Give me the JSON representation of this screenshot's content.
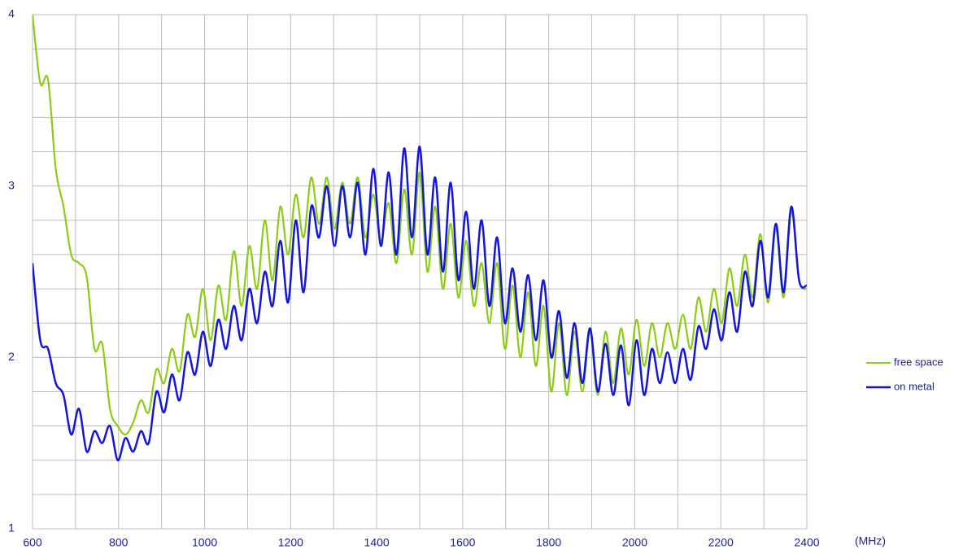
{
  "chart_data": {
    "type": "line",
    "x_label": "(MHz)",
    "x": [
      600,
      618,
      636,
      654,
      672,
      690,
      708,
      726,
      744,
      762,
      780,
      798,
      816,
      834,
      852,
      870,
      888,
      906,
      924,
      942,
      960,
      978,
      996,
      1014,
      1032,
      1050,
      1068,
      1086,
      1104,
      1122,
      1140,
      1158,
      1176,
      1194,
      1212,
      1230,
      1248,
      1266,
      1284,
      1302,
      1320,
      1338,
      1356,
      1374,
      1392,
      1410,
      1428,
      1446,
      1464,
      1482,
      1500,
      1518,
      1536,
      1554,
      1572,
      1590,
      1608,
      1626,
      1644,
      1662,
      1680,
      1698,
      1716,
      1734,
      1752,
      1770,
      1788,
      1806,
      1824,
      1842,
      1860,
      1878,
      1896,
      1914,
      1932,
      1950,
      1968,
      1986,
      2004,
      2022,
      2040,
      2058,
      2076,
      2094,
      2112,
      2130,
      2148,
      2166,
      2184,
      2202,
      2220,
      2238,
      2256,
      2274,
      2292,
      2310,
      2328,
      2346,
      2364,
      2382,
      2400
    ],
    "series": [
      {
        "name": "free space",
        "color": "#8ccc14",
        "values": [
          4.0,
          3.6,
          3.62,
          3.1,
          2.88,
          2.6,
          2.55,
          2.47,
          2.05,
          2.08,
          1.7,
          1.6,
          1.55,
          1.62,
          1.75,
          1.68,
          1.93,
          1.85,
          2.05,
          1.92,
          2.25,
          2.12,
          2.4,
          2.1,
          2.42,
          2.22,
          2.62,
          2.3,
          2.65,
          2.4,
          2.8,
          2.45,
          2.88,
          2.6,
          2.95,
          2.7,
          3.05,
          2.78,
          3.05,
          2.75,
          3.02,
          2.78,
          3.05,
          2.7,
          2.95,
          2.68,
          2.9,
          2.55,
          2.98,
          2.6,
          3.08,
          2.5,
          2.88,
          2.4,
          2.78,
          2.35,
          2.68,
          2.3,
          2.55,
          2.2,
          2.55,
          2.05,
          2.42,
          2.0,
          2.38,
          1.95,
          2.3,
          1.8,
          2.2,
          1.78,
          2.15,
          1.8,
          2.15,
          1.78,
          2.15,
          1.85,
          2.17,
          1.9,
          2.22,
          1.95,
          2.2,
          2.0,
          2.2,
          2.05,
          2.25,
          2.05,
          2.35,
          2.15,
          2.4,
          2.2,
          2.52,
          2.3,
          2.6,
          2.35,
          2.72,
          2.32,
          2.75,
          2.35,
          2.85,
          2.45,
          2.4
        ]
      },
      {
        "name": "on metal",
        "color": "#1414e0",
        "values": [
          2.55,
          2.1,
          2.05,
          1.85,
          1.78,
          1.55,
          1.7,
          1.45,
          1.57,
          1.5,
          1.6,
          1.4,
          1.53,
          1.45,
          1.57,
          1.5,
          1.8,
          1.68,
          1.9,
          1.75,
          2.03,
          1.9,
          2.15,
          1.95,
          2.22,
          2.05,
          2.3,
          2.1,
          2.4,
          2.2,
          2.5,
          2.3,
          2.68,
          2.32,
          2.8,
          2.38,
          2.88,
          2.7,
          3.0,
          2.65,
          3.0,
          2.7,
          3.02,
          2.6,
          3.1,
          2.65,
          3.08,
          2.6,
          3.22,
          2.7,
          3.23,
          2.6,
          3.05,
          2.5,
          3.02,
          2.45,
          2.85,
          2.4,
          2.8,
          2.3,
          2.7,
          2.2,
          2.52,
          2.15,
          2.48,
          2.1,
          2.45,
          2.0,
          2.27,
          1.88,
          2.2,
          1.85,
          2.17,
          1.8,
          2.08,
          1.78,
          2.07,
          1.72,
          2.1,
          1.78,
          2.05,
          1.85,
          2.03,
          1.85,
          2.05,
          1.87,
          2.18,
          2.05,
          2.28,
          2.1,
          2.38,
          2.15,
          2.5,
          2.3,
          2.68,
          2.35,
          2.78,
          2.38,
          2.88,
          2.45,
          2.42
        ]
      }
    ],
    "xlim": [
      600,
      2400
    ],
    "xticks": [
      600,
      800,
      1000,
      1200,
      1400,
      1600,
      1800,
      2000,
      2200,
      2400
    ],
    "xminorticks": [
      700,
      900,
      1100,
      1300,
      1500,
      1700,
      1900,
      2100,
      2300
    ],
    "ylim": [
      1,
      4
    ],
    "yticks": [
      1,
      2,
      3,
      4
    ],
    "yminorticks": [
      1.2,
      1.4,
      1.6,
      1.8,
      2.2,
      2.4,
      2.6,
      2.8,
      3.2,
      3.4,
      3.6,
      3.8
    ],
    "grid": true,
    "legend": "right"
  }
}
